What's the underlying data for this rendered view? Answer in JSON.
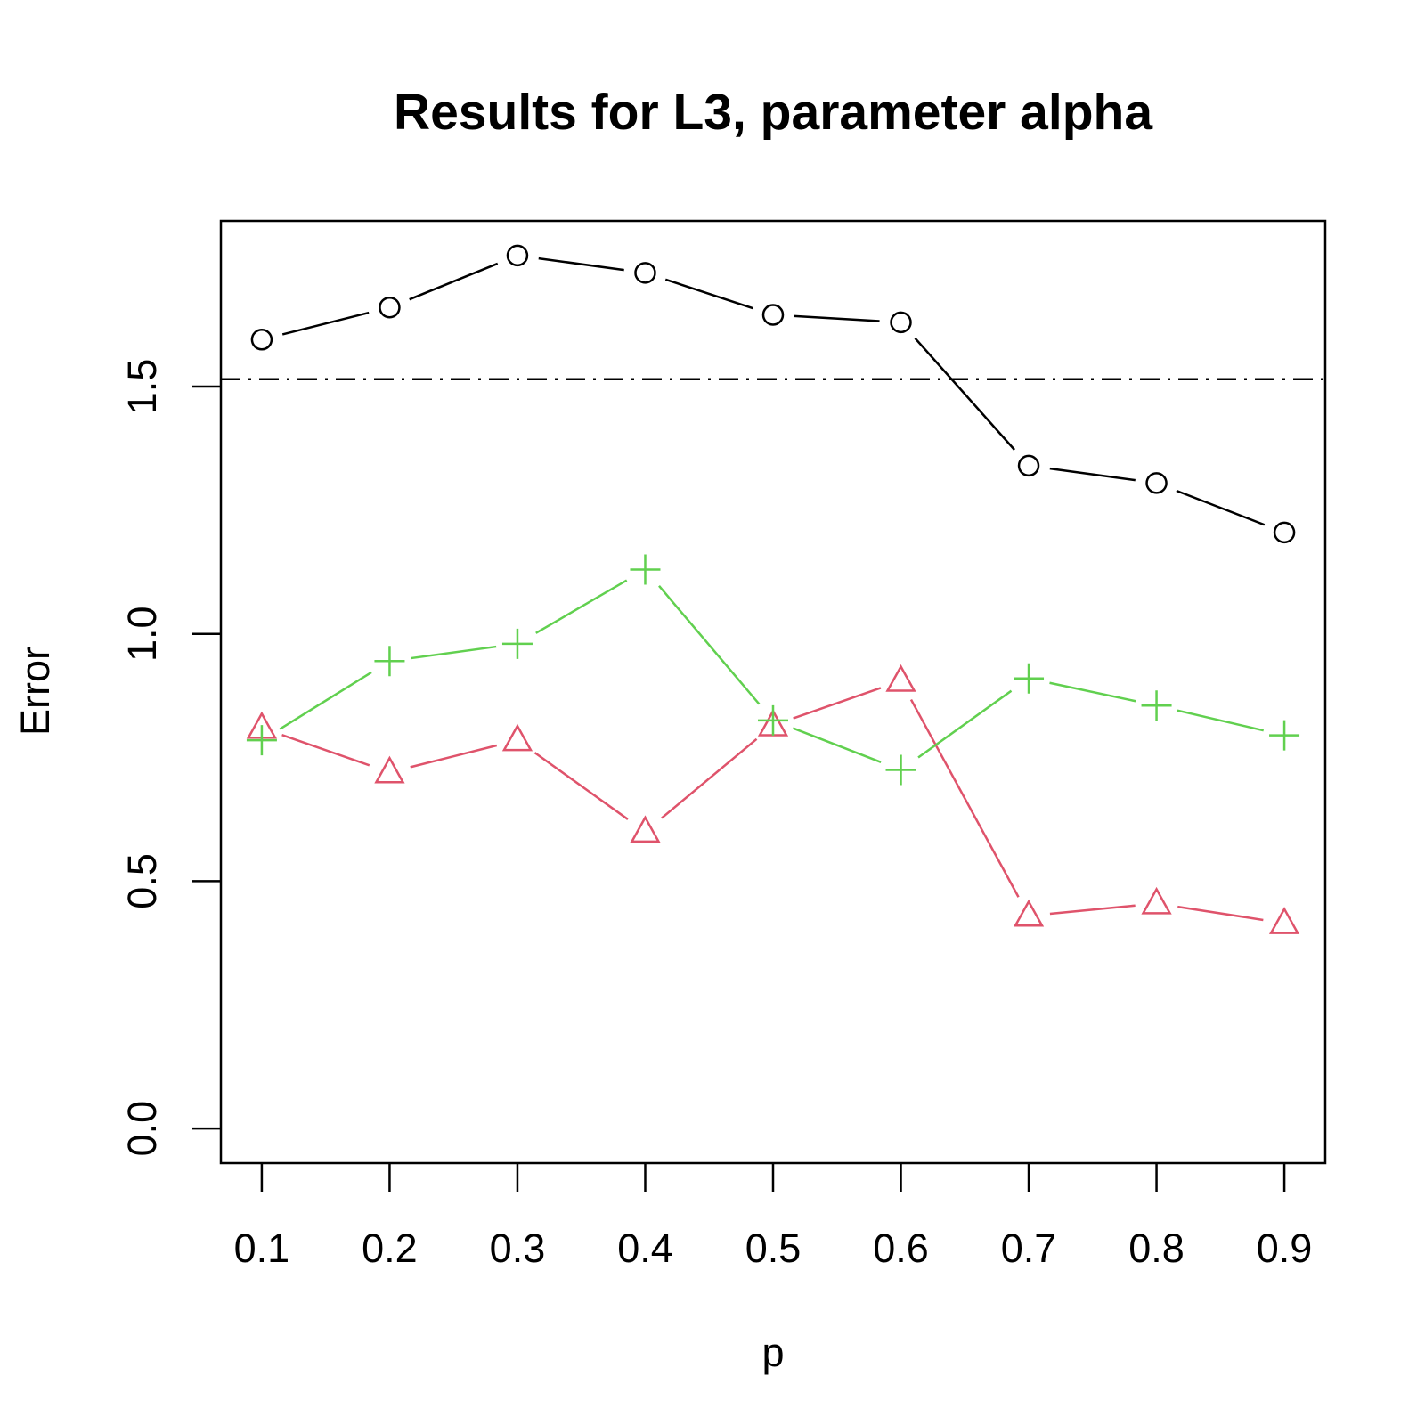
{
  "chart_data": {
    "type": "line",
    "title": "Results for L3, parameter alpha",
    "xlabel": "p",
    "ylabel": "Error",
    "x": [
      0.1,
      0.2,
      0.3,
      0.4,
      0.5,
      0.6,
      0.7,
      0.8,
      0.9
    ],
    "x_tick_labels": [
      "0.1",
      "0.2",
      "0.3",
      "0.4",
      "0.5",
      "0.6",
      "0.7",
      "0.8",
      "0.9"
    ],
    "y_ticks": [
      0.0,
      0.5,
      1.0,
      1.5
    ],
    "y_tick_labels": [
      "0.0",
      "0.5",
      "1.0",
      "1.5"
    ],
    "xlim": [
      0.068,
      0.932
    ],
    "ylim": [
      -0.07,
      1.835
    ],
    "grid": false,
    "legend": "none",
    "series": [
      {
        "marker": "circle",
        "color": "#000000",
        "values": [
          1.595,
          1.66,
          1.765,
          1.73,
          1.645,
          1.63,
          1.34,
          1.305,
          1.205
        ]
      },
      {
        "marker": "triangle",
        "color": "#DF536B",
        "values": [
          0.81,
          0.72,
          0.785,
          0.6,
          0.815,
          0.905,
          0.43,
          0.455,
          0.415
        ]
      },
      {
        "marker": "plus",
        "color": "#61D04F",
        "values": [
          0.785,
          0.945,
          0.98,
          1.13,
          0.825,
          0.725,
          0.91,
          0.855,
          0.795
        ]
      }
    ],
    "reference_lines": [
      {
        "y": 1.515,
        "style": "dot-dash",
        "color": "#000000"
      }
    ]
  }
}
